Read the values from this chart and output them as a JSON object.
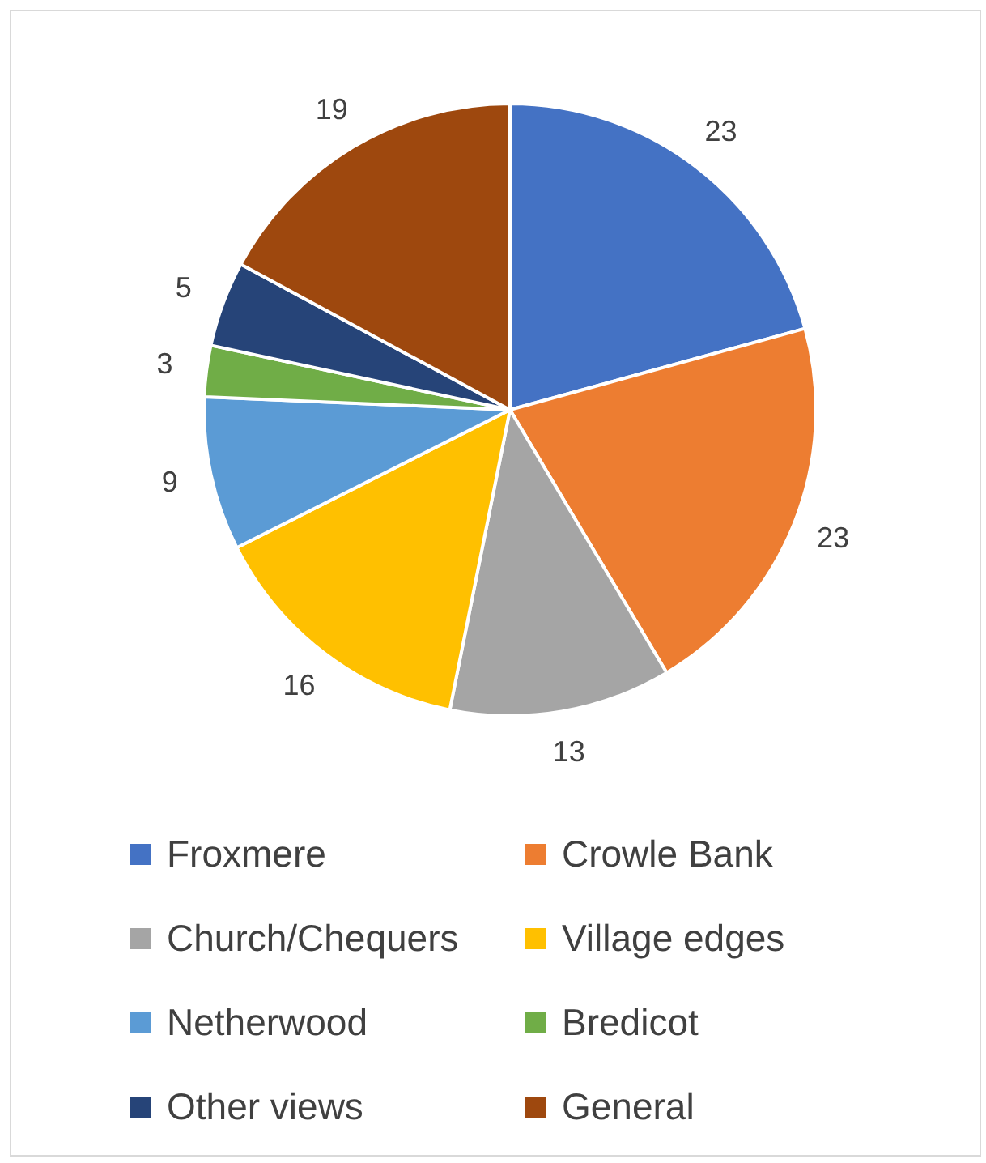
{
  "chart_data": {
    "type": "pie",
    "categories": [
      "Froxmere",
      "Crowle Bank",
      "Church/Chequers",
      "Village edges",
      "Netherwood",
      "Bredicot",
      "Other views",
      "General"
    ],
    "values": [
      23,
      23,
      13,
      16,
      9,
      3,
      5,
      19
    ],
    "colors": [
      "#4472c4",
      "#ed7d31",
      "#a5a5a5",
      "#ffc000",
      "#5b9bd5",
      "#70ad47",
      "#264478",
      "#9e480e"
    ],
    "data_labels": true,
    "legend": "bottom"
  }
}
